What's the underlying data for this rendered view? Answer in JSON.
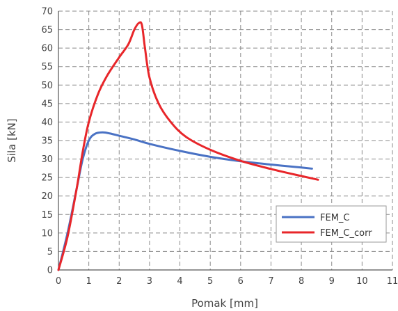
{
  "chart_data": {
    "type": "line",
    "xlabel": "Pomak [mm]",
    "ylabel": "Sila [kN]",
    "xlim": [
      0,
      11
    ],
    "ylim": [
      0,
      70
    ],
    "xticks": [
      "0",
      "1",
      "2",
      "3",
      "4",
      "5",
      "6",
      "7",
      "8",
      "9",
      "10",
      "11"
    ],
    "yticks": [
      "0",
      "5",
      "10",
      "15",
      "20",
      "25",
      "30",
      "35",
      "40",
      "45",
      "50",
      "55",
      "60",
      "65",
      "70"
    ],
    "grid": true,
    "legend_position": "lower-right",
    "series": [
      {
        "name": "FEM_C",
        "color": "#4a72c4",
        "x": [
          0,
          0.3,
          0.6,
          0.8,
          1.0,
          1.2,
          1.45,
          1.7,
          2.0,
          2.5,
          3.0,
          4.0,
          5.0,
          6.0,
          7.0,
          8.0,
          8.35
        ],
        "y": [
          0,
          10,
          22,
          30,
          35,
          36.8,
          37.2,
          36.9,
          36.3,
          35.3,
          34.1,
          32.2,
          30.6,
          29.4,
          28.5,
          27.7,
          27.4
        ]
      },
      {
        "name": "FEM_C_corr",
        "color": "#e8262a",
        "x": [
          0,
          0.3,
          0.6,
          0.8,
          1.0,
          1.3,
          1.6,
          2.0,
          2.3,
          2.5,
          2.65,
          2.75,
          2.85,
          3.0,
          3.3,
          3.7,
          4.2,
          5.0,
          6.0,
          7.0,
          8.0,
          8.55
        ],
        "y": [
          0,
          9,
          22,
          32,
          40,
          47.5,
          52.5,
          57.5,
          61,
          65,
          66.8,
          66.2,
          60,
          52,
          45,
          40,
          36,
          32.5,
          29.5,
          27.3,
          25.4,
          24.4
        ]
      }
    ]
  }
}
